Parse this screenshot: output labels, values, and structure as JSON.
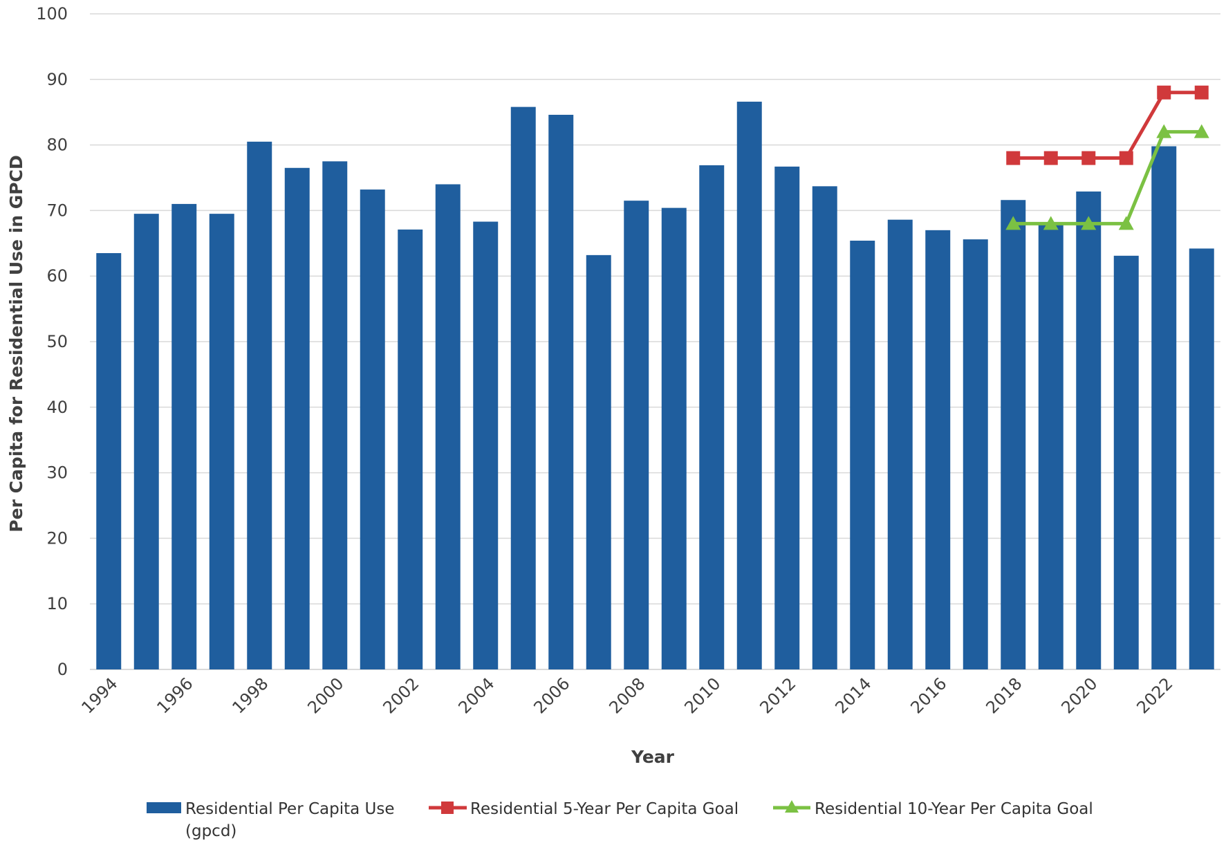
{
  "chart_data": {
    "type": "bar",
    "xlabel": "Year",
    "ylabel": "Per Capita for Residential Use in GPCD",
    "ylim": [
      0,
      100
    ],
    "yticks": [
      0,
      10,
      20,
      30,
      40,
      50,
      60,
      70,
      80,
      90,
      100
    ],
    "grid": true,
    "legend_position": "bottom",
    "x_tick_labels_shown": [
      "1994",
      "1996",
      "1998",
      "2000",
      "2002",
      "2004",
      "2006",
      "2008",
      "2010",
      "2012",
      "2014",
      "2016",
      "2018",
      "2020",
      "2022"
    ],
    "categories": [
      "1994",
      "1995",
      "1996",
      "1997",
      "1998",
      "1999",
      "2000",
      "2001",
      "2002",
      "2003",
      "2004",
      "2005",
      "2006",
      "2007",
      "2008",
      "2009",
      "2010",
      "2011",
      "2012",
      "2013",
      "2014",
      "2015",
      "2016",
      "2017",
      "2018",
      "2019",
      "2020",
      "2021",
      "2022",
      "2023"
    ],
    "series": [
      {
        "name": "Residential Per Capita Use (gpcd)",
        "name_lines": [
          "Residential Per Capita Use",
          "(gpcd)"
        ],
        "kind": "bar",
        "color": "#1F5E9E",
        "values": [
          63.5,
          69.5,
          71,
          69.5,
          80.5,
          76.5,
          77.5,
          73.2,
          67.1,
          74,
          68.3,
          85.8,
          84.6,
          63.2,
          71.5,
          70.4,
          76.9,
          86.6,
          76.7,
          73.7,
          65.4,
          68.6,
          67,
          65.6,
          71.6,
          67.8,
          72.9,
          63.1,
          79.8,
          64.2
        ]
      },
      {
        "name": "Residential 5-Year Per Capita Goal",
        "kind": "line",
        "marker": "square",
        "color": "#D0393B",
        "x": [
          "2018",
          "2019",
          "2020",
          "2021",
          "2022",
          "2023"
        ],
        "values": [
          78,
          78,
          78,
          78,
          88,
          88
        ]
      },
      {
        "name": "Residential 10-Year Per Capita Goal",
        "kind": "line",
        "marker": "triangle",
        "color": "#7BC143",
        "x": [
          "2018",
          "2019",
          "2020",
          "2021",
          "2022",
          "2023"
        ],
        "values": [
          68,
          68,
          68,
          68,
          82,
          82
        ]
      }
    ]
  }
}
